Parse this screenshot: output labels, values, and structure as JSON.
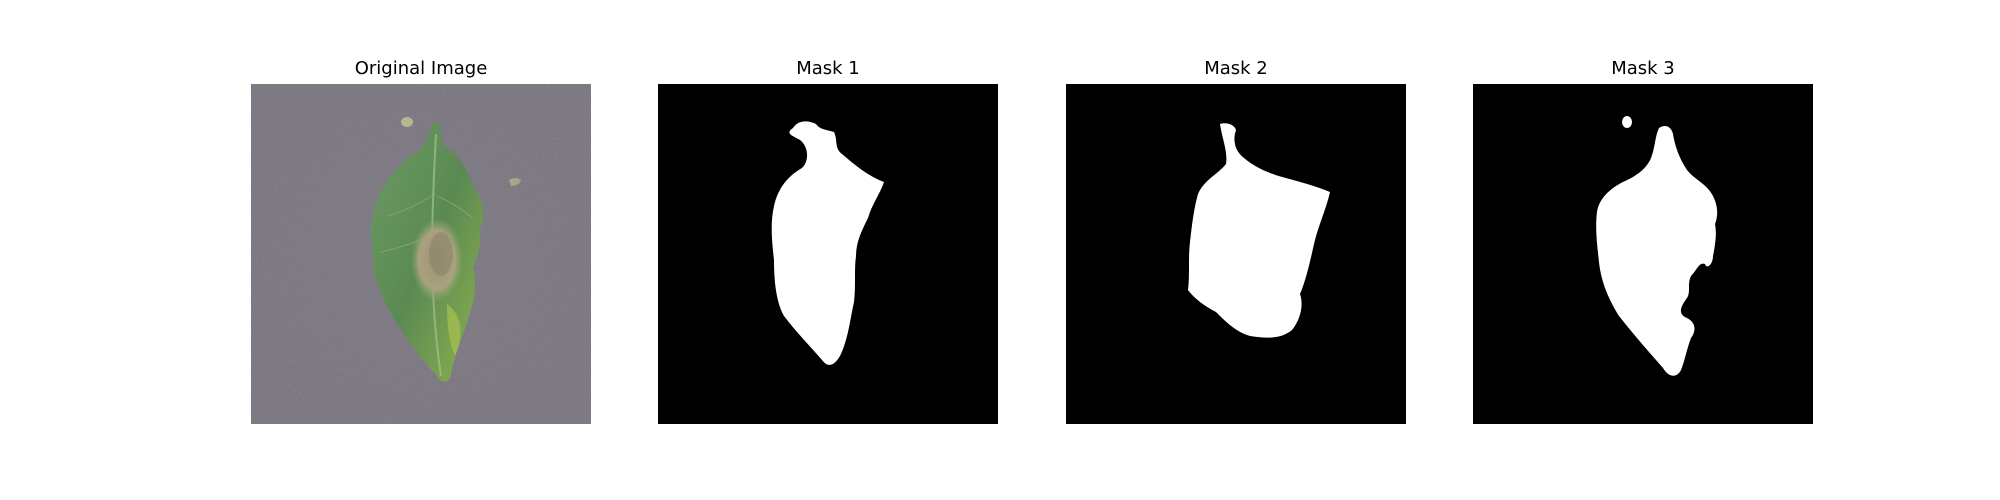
{
  "figure": {
    "panels": [
      {
        "title": "Original Image",
        "kind": "photo",
        "subject": "leaf"
      },
      {
        "title": "Mask 1",
        "kind": "mask"
      },
      {
        "title": "Mask 2",
        "kind": "mask"
      },
      {
        "title": "Mask 3",
        "kind": "mask"
      }
    ]
  },
  "colors": {
    "background": "#7a7580",
    "leaf_light": "#7aa872",
    "leaf_dark": "#4f7f4b",
    "lesion": "#a39b77",
    "mask_background": "#000000",
    "mask_foreground": "#ffffff"
  }
}
